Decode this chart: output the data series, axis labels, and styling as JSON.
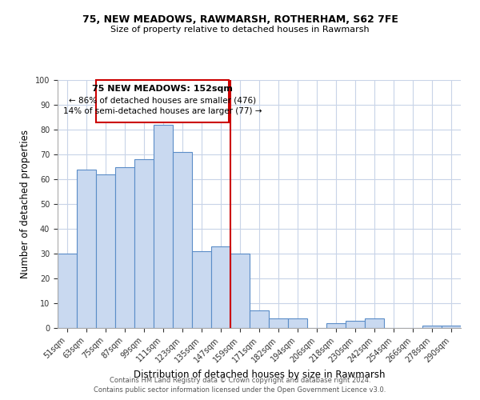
{
  "title1": "75, NEW MEADOWS, RAWMARSH, ROTHERHAM, S62 7FE",
  "title2": "Size of property relative to detached houses in Rawmarsh",
  "xlabel": "Distribution of detached houses by size in Rawmarsh",
  "ylabel": "Number of detached properties",
  "categories": [
    "51sqm",
    "63sqm",
    "75sqm",
    "87sqm",
    "99sqm",
    "111sqm",
    "123sqm",
    "135sqm",
    "147sqm",
    "159sqm",
    "171sqm",
    "182sqm",
    "194sqm",
    "206sqm",
    "218sqm",
    "230sqm",
    "242sqm",
    "254sqm",
    "266sqm",
    "278sqm",
    "290sqm"
  ],
  "values": [
    30,
    64,
    62,
    65,
    68,
    82,
    71,
    31,
    33,
    30,
    7,
    4,
    4,
    0,
    2,
    3,
    4,
    0,
    0,
    1,
    1
  ],
  "bar_color": "#c9d9f0",
  "bar_edge_color": "#5b8dc8",
  "ylim": [
    0,
    100
  ],
  "yticks": [
    0,
    10,
    20,
    30,
    40,
    50,
    60,
    70,
    80,
    90,
    100
  ],
  "property_line_x": 8.5,
  "property_label": "75 NEW MEADOWS: 152sqm",
  "annotation_line1": "← 86% of detached houses are smaller (476)",
  "annotation_line2": "14% of semi-detached houses are larger (77) →",
  "box_color": "#cc0000",
  "vline_color": "#cc0000",
  "footer1": "Contains HM Land Registry data © Crown copyright and database right 2024.",
  "footer2": "Contains public sector information licensed under the Open Government Licence v3.0.",
  "background_color": "#ffffff",
  "grid_color": "#c8d4e8"
}
